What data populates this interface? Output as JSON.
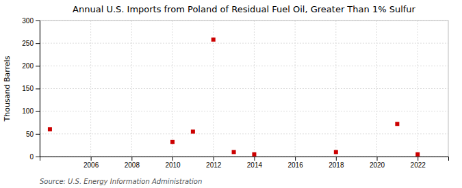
{
  "chart_data": {
    "type": "scatter",
    "title": "Annual U.S. Imports from Poland of Residual Fuel Oil, Greater Than 1% Sulfur",
    "ylabel": "Thousand Barrels",
    "source": "Source: U.S. Energy Information Administration",
    "x": [
      2004,
      2010,
      2011,
      2012,
      2013,
      2014,
      2018,
      2021,
      2022
    ],
    "values": [
      60,
      32,
      55,
      258,
      10,
      5,
      10,
      72,
      5
    ],
    "color": "#cc0000",
    "marker": "square",
    "xlim": [
      2003.5,
      2023.5
    ],
    "ylim": [
      0,
      300
    ],
    "xticks": [
      2006,
      2008,
      2010,
      2012,
      2014,
      2016,
      2018,
      2020,
      2022
    ],
    "yticks": [
      0,
      50,
      100,
      150,
      200,
      250,
      300
    ],
    "grid": true
  }
}
